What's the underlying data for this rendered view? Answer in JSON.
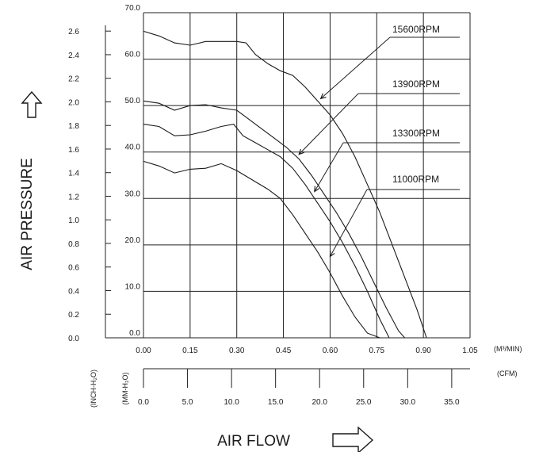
{
  "chart_data": {
    "type": "line",
    "ylabel": "AIR PRESSURE",
    "xlabel": "AIR FLOW",
    "x_unit": "(M³/MIN)",
    "x2_unit": "(CFM)",
    "y_unit_inch": "(INCH-H₂O)",
    "y_unit_mm": "(MM-H₂O)",
    "xlim": [
      0,
      1.05
    ],
    "ylim": [
      0,
      70
    ],
    "grid": true,
    "x_ticks": [
      "0.00",
      "0.15",
      "0.30",
      "0.45",
      "0.60",
      "0.75",
      "0.90",
      "1.05"
    ],
    "x_ticks_values": [
      0,
      0.15,
      0.3,
      0.45,
      0.6,
      0.75,
      0.9,
      1.05
    ],
    "cfm_ticks": [
      "0.0",
      "5.0",
      "10.0",
      "15.0",
      "20.0",
      "25.0",
      "30.0",
      "35.0"
    ],
    "cfm_ticks_values": [
      0,
      5,
      10,
      15,
      20,
      25,
      30,
      35
    ],
    "mm_ticks": [
      "0.0",
      "10.0",
      "20.0",
      "30.0",
      "40.0",
      "50.0",
      "60.0",
      "70.0"
    ],
    "mm_ticks_values": [
      0,
      10,
      20,
      30,
      40,
      50,
      60,
      70
    ],
    "inch_ticks": [
      "0.0",
      "0.2",
      "0.4",
      "0.6",
      "0.8",
      "1.0",
      "1.2",
      "1.4",
      "1.6",
      "1.8",
      "2.0",
      "2.2",
      "2.4",
      "2.6"
    ],
    "inch_ticks_values": [
      0,
      0.2,
      0.4,
      0.6,
      0.8,
      1.0,
      1.2,
      1.4,
      1.6,
      1.8,
      2.0,
      2.2,
      2.4,
      2.6
    ],
    "series": [
      {
        "name": "15600RPM",
        "x": [
          0,
          0.05,
          0.1,
          0.15,
          0.2,
          0.25,
          0.3,
          0.33,
          0.36,
          0.4,
          0.44,
          0.48,
          0.52,
          0.56,
          0.6,
          0.64,
          0.68,
          0.72,
          0.76,
          0.8,
          0.84,
          0.88,
          0.91
        ],
        "y": [
          66,
          65,
          63.5,
          63,
          63.8,
          63.8,
          63.8,
          63.5,
          61,
          59,
          57.5,
          56.5,
          54,
          51,
          48,
          44,
          39,
          33,
          27,
          20,
          13,
          6,
          0
        ]
      },
      {
        "name": "13900RPM",
        "x": [
          0,
          0.05,
          0.1,
          0.15,
          0.2,
          0.25,
          0.3,
          0.34,
          0.38,
          0.42,
          0.46,
          0.5,
          0.54,
          0.58,
          0.62,
          0.66,
          0.7,
          0.74,
          0.78,
          0.82,
          0.84
        ],
        "y": [
          51,
          50.5,
          49,
          50,
          50.2,
          49.5,
          49,
          47,
          45,
          43,
          41,
          38.5,
          35,
          31,
          27,
          22.5,
          17.5,
          12,
          6.5,
          1.5,
          0
        ]
      },
      {
        "name": "13300RPM",
        "x": [
          0,
          0.05,
          0.1,
          0.15,
          0.2,
          0.25,
          0.29,
          0.32,
          0.36,
          0.4,
          0.44,
          0.48,
          0.52,
          0.56,
          0.6,
          0.64,
          0.68,
          0.72,
          0.76,
          0.79
        ],
        "y": [
          46,
          45.5,
          43.5,
          43.7,
          44.5,
          45.5,
          46,
          43.5,
          42,
          40.5,
          39,
          36.5,
          33,
          29,
          25,
          20.5,
          15.5,
          10,
          4,
          0
        ]
      },
      {
        "name": "11000RPM",
        "x": [
          0,
          0.05,
          0.1,
          0.15,
          0.2,
          0.25,
          0.3,
          0.35,
          0.4,
          0.44,
          0.48,
          0.52,
          0.56,
          0.6,
          0.64,
          0.68,
          0.72,
          0.76
        ],
        "y": [
          38,
          37,
          35.5,
          36.3,
          36.5,
          37.5,
          36,
          34,
          32,
          30,
          26.5,
          22.5,
          18.5,
          14,
          9,
          4.5,
          1,
          0
        ]
      }
    ],
    "labels": [
      {
        "text": "15600RPM",
        "arrow_x": 0.57,
        "arrow_y": 51.5
      },
      {
        "text": "13900RPM",
        "arrow_x": 0.5,
        "arrow_y": 39.5
      },
      {
        "text": "13300RPM",
        "arrow_x": 0.55,
        "arrow_y": 31.5
      },
      {
        "text": "11000RPM",
        "arrow_x": 0.6,
        "arrow_y": 17.5
      }
    ]
  }
}
